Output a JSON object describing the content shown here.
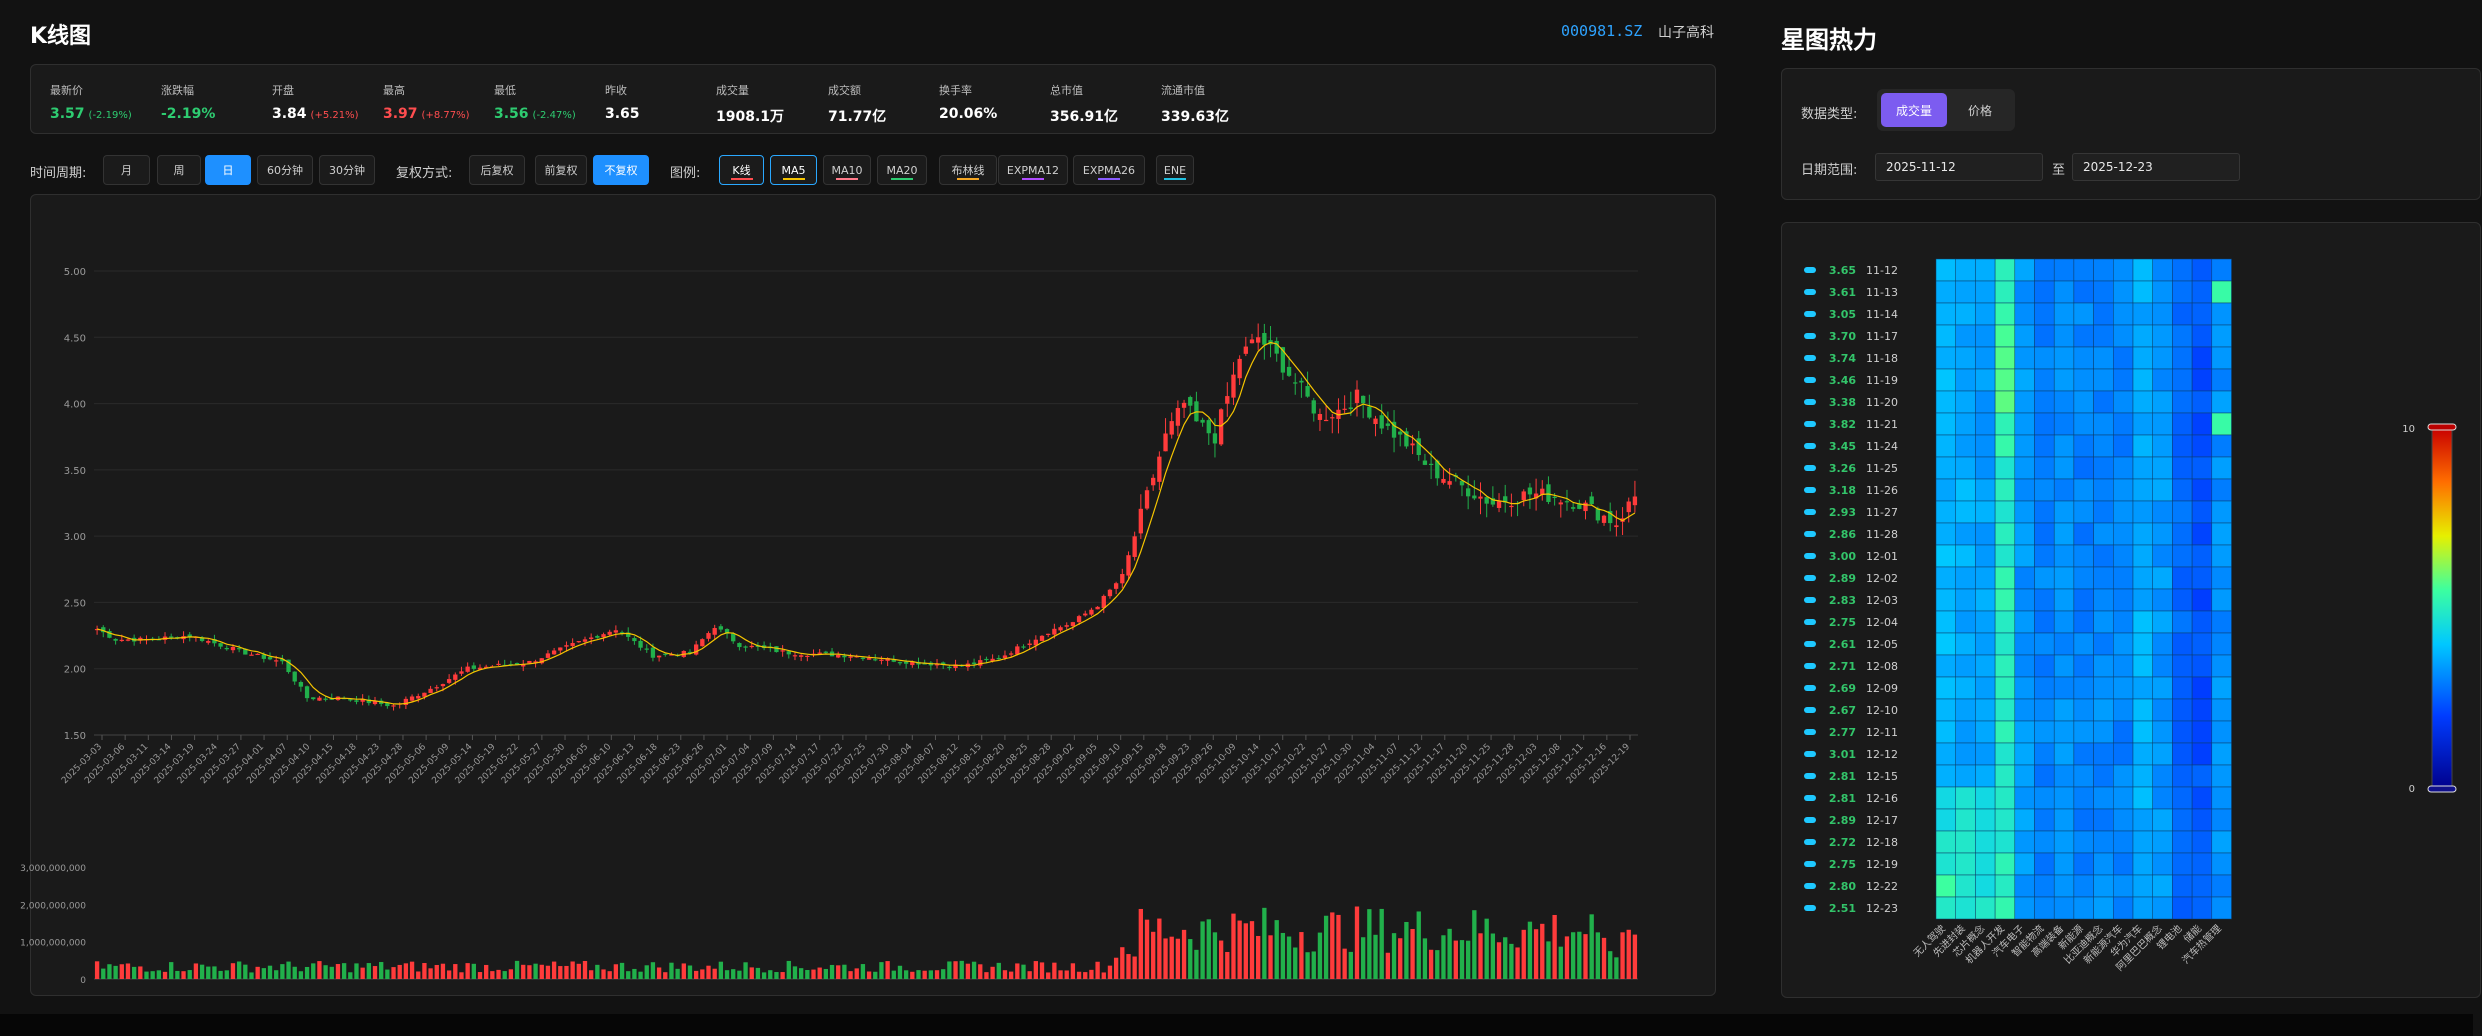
{
  "header": {
    "title": "K线图",
    "code": "000981.SZ",
    "name": "山子高科"
  },
  "quotes": [
    {
      "label": "最新价",
      "value": "3.57",
      "sub": "(-2.19%)",
      "tone": "down"
    },
    {
      "label": "涨跌幅",
      "value": "-2.19%",
      "sub": "",
      "tone": "down"
    },
    {
      "label": "开盘",
      "value": "3.84",
      "sub": "(+5.21%)",
      "tone": "white",
      "sub_tone": "up"
    },
    {
      "label": "最高",
      "value": "3.97",
      "sub": "(+8.77%)",
      "tone": "up"
    },
    {
      "label": "最低",
      "value": "3.56",
      "sub": "(-2.47%)",
      "tone": "down"
    },
    {
      "label": "昨收",
      "value": "3.65",
      "sub": "",
      "tone": "white"
    },
    {
      "label": "成交量",
      "value": "1908.1万",
      "sub": "",
      "tone": "white"
    },
    {
      "label": "成交额",
      "value": "71.77亿",
      "sub": "",
      "tone": "white"
    },
    {
      "label": "换手率",
      "value": "20.06%",
      "sub": "",
      "tone": "white"
    },
    {
      "label": "总市值",
      "value": "356.91亿",
      "sub": "",
      "tone": "white"
    },
    {
      "label": "流通市值",
      "value": "339.63亿",
      "sub": "",
      "tone": "white"
    }
  ],
  "controls": {
    "period_label": "时间周期:",
    "periods": [
      "月",
      "周",
      "日",
      "60分钟",
      "30分钟"
    ],
    "active_period": "日",
    "adjust_label": "复权方式:",
    "adjusts": [
      "后复权",
      "前复权",
      "不复权"
    ],
    "active_adjust": "不复权",
    "legend_label": "图例:",
    "legends": [
      {
        "name": "K线",
        "color": "#ff4d4f",
        "on": true
      },
      {
        "name": "MA5",
        "color": "#f5c400",
        "on": true
      },
      {
        "name": "MA10",
        "color": "#ff7a8a",
        "on": false
      },
      {
        "name": "MA20",
        "color": "#2ecc71",
        "on": false
      },
      {
        "name": "布林线",
        "color": "#f5a623",
        "on": false
      },
      {
        "name": "EXPMA12",
        "color": "#b04cff",
        "on": false
      },
      {
        "name": "EXPMA26",
        "color": "#8a5cff",
        "on": false
      },
      {
        "name": "ENE",
        "color": "#20c0e0",
        "on": false
      }
    ]
  },
  "colors": {
    "up": "#ff3b3b",
    "down": "#21b04b",
    "ma5": "#f5c400",
    "accent": "#1e90ff",
    "purple": "#7c5cf0"
  },
  "chart_data": [
    {
      "type": "candlestick",
      "title": "",
      "ylim": [
        1.5,
        5.0
      ],
      "y_ticks": [
        "5.00",
        "4.50",
        "4.00",
        "3.50",
        "3.00",
        "2.50",
        "2.00",
        "1.50"
      ],
      "x_ticks": [
        "2025-03-03",
        "2025-03-06",
        "2025-03-11",
        "2025-03-14",
        "2025-03-19",
        "2025-03-24",
        "2025-03-27",
        "2025-04-01",
        "2025-04-07",
        "2025-04-10",
        "2025-04-15",
        "2025-04-18",
        "2025-04-23",
        "2025-04-28",
        "2025-05-06",
        "2025-05-09",
        "2025-05-14",
        "2025-05-19",
        "2025-05-22",
        "2025-05-27",
        "2025-05-30",
        "2025-06-05",
        "2025-06-10",
        "2025-06-13",
        "2025-06-18",
        "2025-06-23",
        "2025-06-26",
        "2025-07-01",
        "2025-07-04",
        "2025-07-09",
        "2025-07-14",
        "2025-07-17",
        "2025-07-22",
        "2025-07-25",
        "2025-07-30",
        "2025-08-04",
        "2025-08-07",
        "2025-08-12",
        "2025-08-15",
        "2025-08-20",
        "2025-08-25",
        "2025-08-28",
        "2025-09-02",
        "2025-09-05",
        "2025-09-10",
        "2025-09-15",
        "2025-09-18",
        "2025-09-23",
        "2025-09-26",
        "2025-10-09",
        "2025-10-14",
        "2025-10-17",
        "2025-10-22",
        "2025-10-27",
        "2025-10-30",
        "2025-11-04",
        "2025-11-07",
        "2025-11-12",
        "2025-11-17",
        "2025-11-20",
        "2025-11-25",
        "2025-11-28",
        "2025-12-03",
        "2025-12-08",
        "2025-12-11",
        "2025-12-16",
        "2025-12-19"
      ],
      "close_path": [
        [
          0,
          2.3
        ],
        [
          3,
          2.22
        ],
        [
          8,
          2.22
        ],
        [
          15,
          2.25
        ],
        [
          24,
          2.12
        ],
        [
          30,
          2.05
        ],
        [
          34,
          1.78
        ],
        [
          40,
          1.78
        ],
        [
          48,
          1.72
        ],
        [
          54,
          1.85
        ],
        [
          60,
          2.0
        ],
        [
          70,
          2.05
        ],
        [
          78,
          2.2
        ],
        [
          84,
          2.3
        ],
        [
          90,
          2.1
        ],
        [
          96,
          2.12
        ],
        [
          100,
          2.32
        ],
        [
          104,
          2.18
        ],
        [
          112,
          2.12
        ],
        [
          122,
          2.1
        ],
        [
          132,
          2.05
        ],
        [
          140,
          2.02
        ],
        [
          146,
          2.08
        ],
        [
          150,
          2.18
        ],
        [
          154,
          2.28
        ],
        [
          158,
          2.35
        ],
        [
          162,
          2.48
        ],
        [
          166,
          2.7
        ],
        [
          170,
          3.3
        ],
        [
          173,
          3.75
        ],
        [
          176,
          4.0
        ],
        [
          178,
          3.85
        ],
        [
          181,
          3.75
        ],
        [
          185,
          4.35
        ],
        [
          188,
          4.5
        ],
        [
          191,
          4.35
        ],
        [
          195,
          4.1
        ],
        [
          198,
          3.9
        ],
        [
          201,
          3.95
        ],
        [
          204,
          4.05
        ],
        [
          208,
          3.85
        ],
        [
          212,
          3.7
        ],
        [
          216,
          3.5
        ],
        [
          220,
          3.4
        ],
        [
          226,
          3.25
        ],
        [
          232,
          3.32
        ],
        [
          236,
          3.3
        ],
        [
          240,
          3.25
        ],
        [
          246,
          3.1
        ],
        [
          249,
          3.3
        ]
      ],
      "volume": {
        "ylim": [
          0,
          3000000000
        ],
        "y_ticks": [
          "3,000,000,000",
          "2,000,000,000",
          "1,000,000,000",
          "0"
        ]
      }
    },
    {
      "type": "heatmap",
      "rows": [
        "11-12",
        "11-13",
        "11-14",
        "11-17",
        "11-18",
        "11-19",
        "11-20",
        "11-21",
        "11-24",
        "11-25",
        "11-26",
        "11-27",
        "11-28",
        "12-01",
        "12-02",
        "12-03",
        "12-04",
        "12-05",
        "12-08",
        "12-09",
        "12-10",
        "12-11",
        "12-12",
        "12-15",
        "12-16",
        "12-17",
        "12-18",
        "12-19",
        "12-22",
        "12-23"
      ],
      "row_prices": [
        "3.65",
        "3.61",
        "3.05",
        "3.70",
        "3.74",
        "3.46",
        "3.38",
        "3.82",
        "3.45",
        "3.26",
        "3.18",
        "2.93",
        "2.86",
        "3.00",
        "2.89",
        "2.83",
        "2.75",
        "2.61",
        "2.71",
        "2.69",
        "2.67",
        "2.77",
        "3.01",
        "2.81",
        "2.81",
        "2.89",
        "2.72",
        "2.75",
        "2.80",
        "2.51"
      ],
      "columns": [
        "无人驾驶",
        "先进封装",
        "芯片概念",
        "机器人开发",
        "汽车电子",
        "智能物流",
        "高端装备",
        "新能源",
        "比亚迪概念",
        "新能源汽车",
        "华为汽车",
        "阿里巴巴概念",
        "锂电池",
        "储能",
        "汽车热管理"
      ],
      "vmin": 0,
      "vmax": 10,
      "colorbar_labels": [
        "10",
        "0"
      ]
    }
  ],
  "heatmap_panel": {
    "title": "星图热力",
    "type_label": "数据类型:",
    "types": [
      "成交量",
      "价格"
    ],
    "active_type": "成交量",
    "range_label": "日期范围:",
    "start_date": "2025-11-12",
    "to_label": "至",
    "end_date": "2025-12-23"
  }
}
